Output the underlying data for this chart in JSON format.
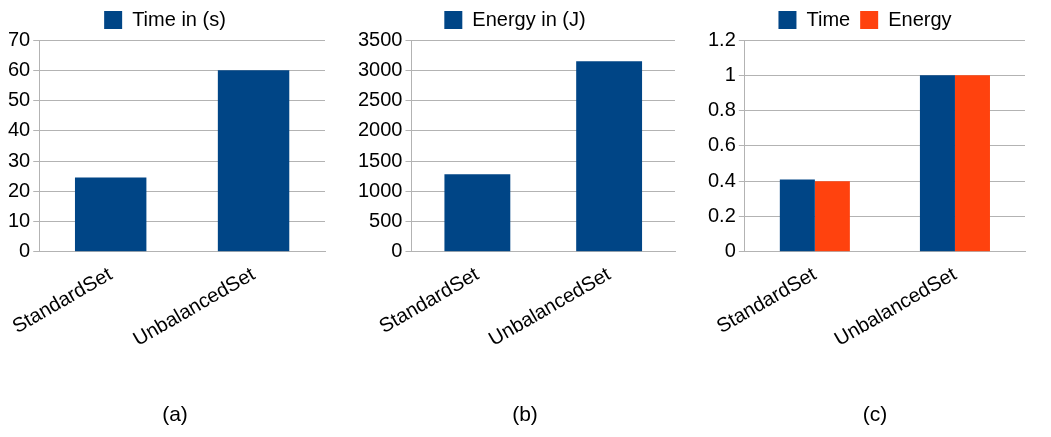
{
  "chart_data": [
    {
      "type": "bar",
      "categories": [
        "StandardSet",
        "UnbalancedSet"
      ],
      "series": [
        {
          "name": "Time in (s)",
          "color": "#004586",
          "values": [
            24.6,
            60
          ]
        }
      ],
      "ylim": [
        0,
        70
      ],
      "yticks": [
        0,
        10,
        20,
        30,
        40,
        50,
        60,
        70
      ],
      "grid": "y",
      "legend": "top",
      "annotations": [
        "(a)"
      ]
    },
    {
      "type": "bar",
      "categories": [
        "StandardSet",
        "UnbalancedSet"
      ],
      "series": [
        {
          "name": "Energy in (J)",
          "color": "#004586",
          "values": [
            1280,
            3150
          ]
        }
      ],
      "ylim": [
        0,
        3500
      ],
      "yticks": [
        0,
        500,
        1000,
        1500,
        2000,
        2500,
        3000,
        3500
      ],
      "grid": "y",
      "legend": "top",
      "annotations": [
        "(b)"
      ]
    },
    {
      "type": "bar",
      "categories": [
        "StandardSet",
        "UnbalancedSet"
      ],
      "series": [
        {
          "name": "Time",
          "color": "#004586",
          "values": [
            0.41,
            1
          ]
        },
        {
          "name": "Energy",
          "color": "#ff420e",
          "values": [
            0.4,
            1
          ]
        }
      ],
      "ylim": [
        0,
        1.2
      ],
      "yticks": [
        0,
        0.2,
        0.4,
        0.6,
        0.8,
        1,
        1.2
      ],
      "grid": "y",
      "legend": "top",
      "annotations": [
        "(c)"
      ]
    }
  ]
}
